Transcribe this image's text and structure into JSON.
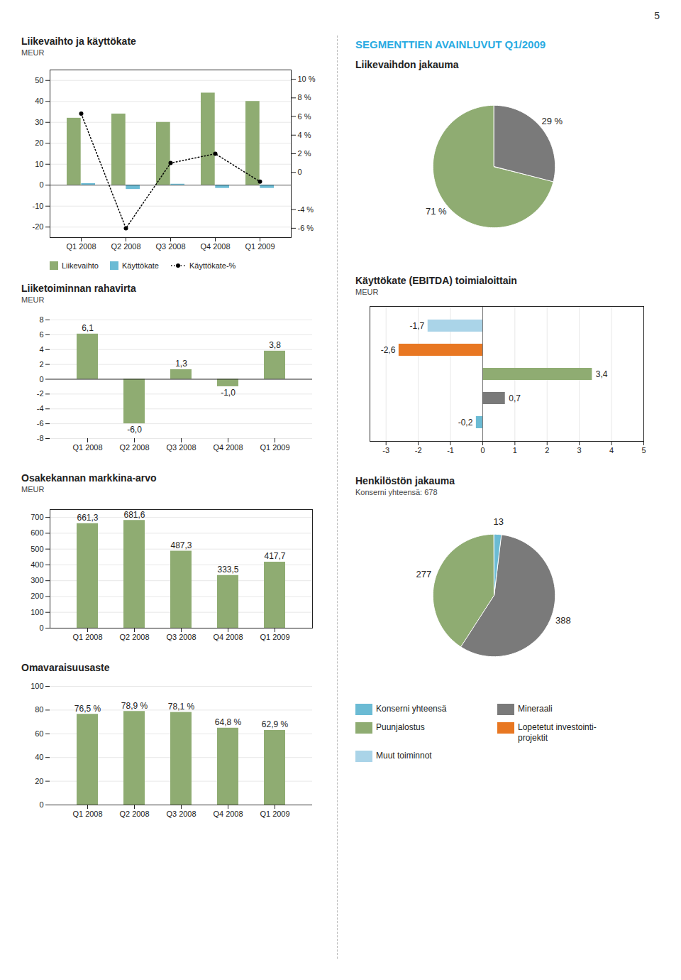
{
  "page_number": "5",
  "heading": {
    "text": "SEGMENTTIEN AVAINLUVUT Q1/2009",
    "color": "#29abe2"
  },
  "chart_data": [
    {
      "type": "bar",
      "title": "Liikevaihto ja käyttökate",
      "subtitle": "MEUR",
      "categories": [
        "Q1 2008",
        "Q2 2008",
        "Q3 2008",
        "Q4 2008",
        "Q1 2009"
      ],
      "series": [
        {
          "name": "Liikevaihto",
          "color": "#8fac72",
          "values": [
            32,
            34,
            30,
            44,
            40
          ]
        },
        {
          "name": "Käyttökate",
          "color": "#6bbbd4",
          "values": [
            0.8,
            -2.0,
            0.5,
            -1.5,
            -1.5
          ]
        },
        {
          "name": "Käyttökate-%",
          "type": "line",
          "axis": "y2",
          "color": "black",
          "marker": "circle",
          "line_style": "dotted",
          "values": [
            6.3,
            -6.0,
            1.0,
            2.0,
            -1.0
          ]
        }
      ],
      "ylim": [
        -25,
        55
      ],
      "yticks": [
        -20,
        -10,
        0,
        10,
        20,
        30,
        40,
        50
      ],
      "y2lim": [
        -7,
        11
      ],
      "y2ticks": [
        {
          "value": -6,
          "label": "-6 %"
        },
        {
          "value": -4,
          "label": "-4 %"
        },
        0,
        {
          "value": 2,
          "label": "2 %"
        },
        {
          "value": 4,
          "label": "4 %"
        },
        {
          "value": 6,
          "label": "6 %"
        },
        {
          "value": 8,
          "label": "8 %"
        },
        {
          "value": 10,
          "label": "10 %"
        }
      ],
      "grid": true,
      "legend": "bottom"
    },
    {
      "type": "bar",
      "title": "Liiketoiminnan rahavirta",
      "subtitle": "MEUR",
      "categories": [
        "Q1 2008",
        "Q2 2008",
        "Q3 2008",
        "Q4 2008",
        "Q1 2009"
      ],
      "values": [
        6.1,
        -6.0,
        1.3,
        -1.0,
        3.8
      ],
      "value_labels": [
        "6,1",
        "-6,0",
        "1,3",
        "-1,0",
        "3,8"
      ],
      "color": "#8fac72",
      "ylim": [
        -8,
        8
      ],
      "yticks": [
        -8,
        -6,
        -4,
        -2,
        0,
        2,
        4,
        6,
        8
      ],
      "grid": true,
      "data_labels": true
    },
    {
      "type": "bar",
      "title": "Osakekannan markkina-arvo",
      "subtitle": "MEUR",
      "categories": [
        "Q1 2008",
        "Q2 2008",
        "Q3 2008",
        "Q4 2008",
        "Q1 2009"
      ],
      "values": [
        661.3,
        681.6,
        487.3,
        333.5,
        417.7
      ],
      "value_labels": [
        "661,3",
        "681,6",
        "487,3",
        "333,5",
        "417,7"
      ],
      "color": "#8fac72",
      "ylim": [
        0,
        750
      ],
      "yticks": [
        0,
        100,
        200,
        300,
        400,
        500,
        600,
        700
      ],
      "grid": true,
      "data_labels": true
    },
    {
      "type": "bar",
      "title": "Omavaraisuusaste",
      "categories": [
        "Q1 2008",
        "Q2 2008",
        "Q3 2008",
        "Q4 2008",
        "Q1 2009"
      ],
      "values": [
        76.5,
        78.9,
        78.1,
        64.8,
        62.9
      ],
      "value_labels": [
        "76,5 %",
        "78,9 %",
        "78,1 %",
        "64,8 %",
        "62,9 %"
      ],
      "color": "#8fac72",
      "ylim": [
        0,
        100
      ],
      "yticks": [
        0,
        20,
        40,
        60,
        80,
        100
      ],
      "grid": true,
      "data_labels": true
    },
    {
      "type": "pie",
      "title": "Liikevaihdon jakauma",
      "values": [
        71,
        29
      ],
      "value_labels": [
        "71 %",
        "29 %"
      ],
      "colors": [
        "#8fac72",
        "#7a7a7a"
      ],
      "data_labels": true
    },
    {
      "type": "bar",
      "orientation": "horizontal",
      "title": "Käyttökate (EBITDA) toimialoittain",
      "subtitle": "MEUR",
      "categories": [
        null,
        null,
        null,
        null,
        null
      ],
      "values": [
        -0.2,
        0.7,
        3.4,
        -2.6,
        -1.7
      ],
      "value_labels": [
        "-0,2",
        "0,7",
        "3,4",
        "-2,6",
        "-1,7"
      ],
      "colors": [
        "#6bbbd4",
        "#7a7a7a",
        "#8fac72",
        "#e87722",
        "#aad4e8"
      ],
      "xlim": [
        -3.5,
        5.0
      ],
      "xticks": [
        -3,
        -2,
        -1,
        0,
        1,
        2,
        3,
        4,
        5
      ],
      "grid": true,
      "data_labels": true,
      "tick_labels": "x"
    },
    {
      "type": "pie",
      "title": "Henkilöstön jakauma",
      "subtitle": "Konserni yhteensä: 678",
      "values": [
        277,
        388,
        13
      ],
      "colors": [
        "#8fac72",
        "#7a7a7a",
        "#6bbbd4"
      ],
      "data_labels": true
    }
  ],
  "legend_entries": [
    {
      "name": "Konserni yhteensä",
      "color": "#6bbbd4"
    },
    {
      "name": "Puunjalostus",
      "color": "#8fac72"
    },
    {
      "name": "Muut toiminnot",
      "color": "#aad4e8"
    },
    {
      "name": "Mineraali",
      "color": "#7a7a7a"
    },
    {
      "name": "Lopetetut investointi-\nprojektit",
      "color": "#e87722"
    }
  ]
}
